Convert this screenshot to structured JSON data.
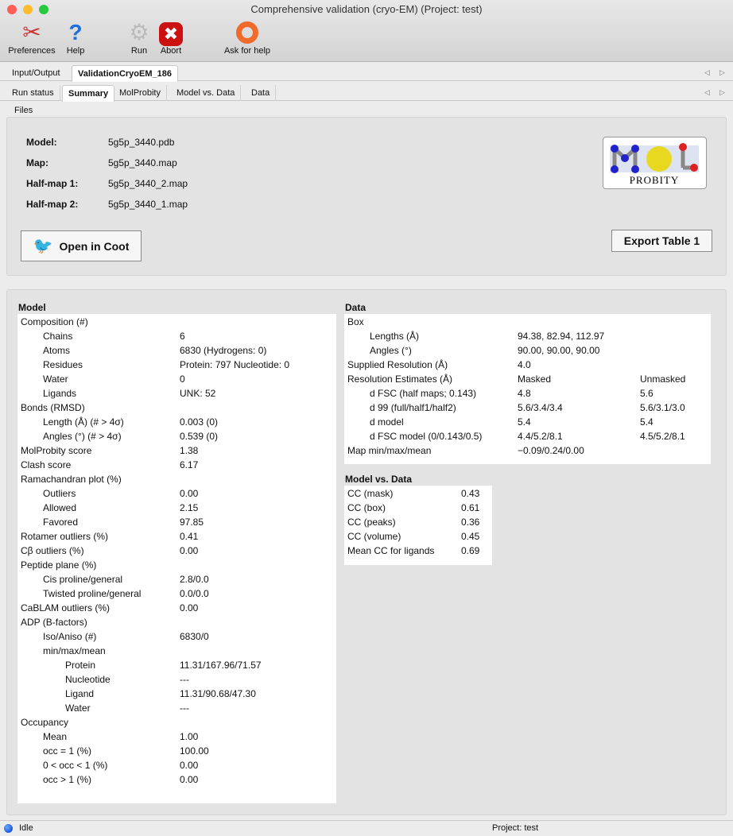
{
  "window": {
    "title": "Comprehensive validation (cryo-EM) (Project: test)"
  },
  "toolbar": [
    {
      "label": "Preferences",
      "icon": "tools-icon"
    },
    {
      "label": "Help",
      "icon": "help-icon"
    },
    {
      "label": "Run",
      "icon": "gear-icon"
    },
    {
      "label": "Abort",
      "icon": "abort-icon"
    },
    {
      "label": "Ask for help",
      "icon": "lifebuoy-icon"
    }
  ],
  "tabs": [
    "Input/Output",
    "ValidationCryoEM_186"
  ],
  "subtabs": [
    "Run status",
    "Summary",
    "MolProbity",
    "Model vs. Data",
    "Data"
  ],
  "files": {
    "section": "Files",
    "rows": [
      {
        "label": "Model:",
        "value": "5g5p_3440.pdb"
      },
      {
        "label": "Map:",
        "value": "5g5p_3440.map"
      },
      {
        "label": "Half-map 1:",
        "value": "5g5p_3440_2.map"
      },
      {
        "label": "Half-map 2:",
        "value": "5g5p_3440_1.map"
      }
    ],
    "open_coot": "Open in Coot",
    "export": "Export Table 1",
    "logo": "MolProbity"
  },
  "model": {
    "title": "Model",
    "rows": [
      {
        "l": 0,
        "label": "Composition (#)",
        "v": ""
      },
      {
        "l": 1,
        "label": "Chains",
        "v": "6"
      },
      {
        "l": 1,
        "label": "Atoms",
        "v": "6830 (Hydrogens: 0)"
      },
      {
        "l": 1,
        "label": "Residues",
        "v": "Protein: 797 Nucleotide: 0"
      },
      {
        "l": 1,
        "label": "Water",
        "v": "0"
      },
      {
        "l": 1,
        "label": "Ligands",
        "v": "UNK: 52"
      },
      {
        "l": 0,
        "label": "Bonds (RMSD)",
        "v": ""
      },
      {
        "l": 1,
        "label": "Length (Å) (# > 4σ)",
        "v": "0.003 (0)"
      },
      {
        "l": 1,
        "label": "Angles (°) (# > 4σ)",
        "v": "0.539 (0)"
      },
      {
        "l": 0,
        "label": "MolProbity score",
        "v": "1.38"
      },
      {
        "l": 0,
        "label": "Clash score",
        "v": "6.17"
      },
      {
        "l": 0,
        "label": "Ramachandran plot (%)",
        "v": ""
      },
      {
        "l": 1,
        "label": "Outliers",
        "v": "0.00"
      },
      {
        "l": 1,
        "label": "Allowed",
        "v": "2.15"
      },
      {
        "l": 1,
        "label": "Favored",
        "v": "97.85"
      },
      {
        "l": 0,
        "label": "Rotamer outliers (%)",
        "v": "0.41"
      },
      {
        "l": 0,
        "label": "Cβ outliers (%)",
        "v": "0.00"
      },
      {
        "l": 0,
        "label": "Peptide plane (%)",
        "v": ""
      },
      {
        "l": 1,
        "label": "Cis proline/general",
        "v": "2.8/0.0"
      },
      {
        "l": 1,
        "label": "Twisted proline/general",
        "v": "0.0/0.0"
      },
      {
        "l": 0,
        "label": "CaBLAM outliers (%)",
        "v": "0.00"
      },
      {
        "l": 0,
        "label": "ADP (B-factors)",
        "v": ""
      },
      {
        "l": 1,
        "label": "Iso/Aniso (#)",
        "v": "6830/0"
      },
      {
        "l": 1,
        "label": "min/max/mean",
        "v": ""
      },
      {
        "l": 2,
        "label": "Protein",
        "v": "11.31/167.96/71.57"
      },
      {
        "l": 2,
        "label": "Nucleotide",
        "v": "---"
      },
      {
        "l": 2,
        "label": "Ligand",
        "v": "11.31/90.68/47.30"
      },
      {
        "l": 2,
        "label": "Water",
        "v": "---"
      },
      {
        "l": 0,
        "label": "Occupancy",
        "v": ""
      },
      {
        "l": 1,
        "label": "Mean",
        "v": "1.00"
      },
      {
        "l": 1,
        "label": "occ = 1 (%)",
        "v": "100.00"
      },
      {
        "l": 1,
        "label": "0 < occ < 1 (%)",
        "v": "0.00"
      },
      {
        "l": 1,
        "label": "occ > 1 (%)",
        "v": "0.00"
      }
    ]
  },
  "data": {
    "title": "Data",
    "rows": [
      {
        "l": 0,
        "label": "Box",
        "v": "",
        "v2": ""
      },
      {
        "l": 1,
        "label": "Lengths (Å)",
        "v": "94.38, 82.94, 112.97",
        "v2": ""
      },
      {
        "l": 1,
        "label": "Angles (°)",
        "v": "90.00, 90.00, 90.00",
        "v2": ""
      },
      {
        "l": 0,
        "label": "Supplied Resolution (Å)",
        "v": "4.0",
        "v2": ""
      },
      {
        "l": 0,
        "label": "Resolution Estimates (Å)",
        "v": "Masked",
        "v2": "Unmasked"
      },
      {
        "l": 1,
        "label": "d FSC (half maps; 0.143)",
        "v": "4.8",
        "v2": "5.6"
      },
      {
        "l": 1,
        "label": "d 99 (full/half1/half2)",
        "v": "5.6/3.4/3.4",
        "v2": "5.6/3.1/3.0"
      },
      {
        "l": 1,
        "label": "d model",
        "v": "5.4",
        "v2": "5.4"
      },
      {
        "l": 1,
        "label": "d FSC model (0/0.143/0.5)",
        "v": "4.4/5.2/8.1",
        "v2": "4.5/5.2/8.1"
      },
      {
        "l": 0,
        "label": "Map min/max/mean",
        "v": "−0.09/0.24/0.00",
        "v2": ""
      }
    ]
  },
  "mvd": {
    "title": "Model vs. Data",
    "rows": [
      {
        "l": 0,
        "label": "CC (mask)",
        "v": "0.43"
      },
      {
        "l": 0,
        "label": "CC (box)",
        "v": "0.61"
      },
      {
        "l": 0,
        "label": "CC (peaks)",
        "v": "0.36"
      },
      {
        "l": 0,
        "label": "CC (volume)",
        "v": "0.45"
      },
      {
        "l": 0,
        "label": "Mean CC for ligands",
        "v": "0.69"
      }
    ]
  },
  "status": {
    "text": "Idle",
    "project": "Project: test"
  }
}
